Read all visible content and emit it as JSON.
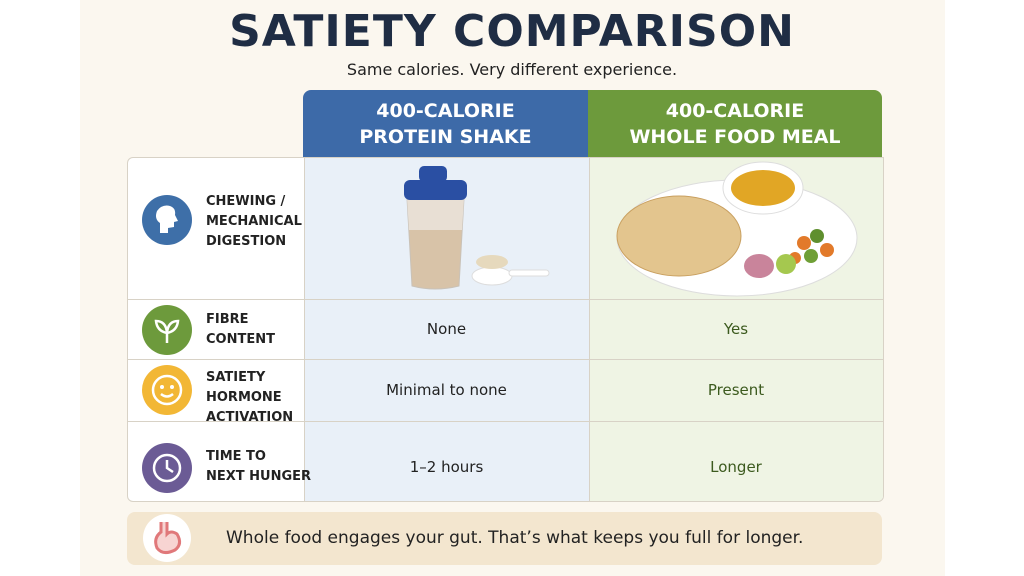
{
  "header": {
    "title": "SATIETY COMPARISON",
    "subtitle": "Same calories. Very different experience."
  },
  "table": {
    "columns": [
      {
        "lines": [
          "400-CALORIE",
          "PROTEIN SHAKE"
        ]
      },
      {
        "lines": [
          "400-CALORIE",
          "WHOLE FOOD MEAL"
        ]
      }
    ],
    "rows": [
      {
        "label": [
          "CHEWING /",
          "MECHANICAL",
          "DIGESTION"
        ]
      },
      {
        "label": [
          "FIBRE",
          "CONTENT"
        ],
        "cells": [
          "None",
          "Yes"
        ]
      },
      {
        "label": [
          "SATIETY",
          "HORMONE",
          "ACTIVATION"
        ],
        "cells": [
          "Minimal to none",
          "Present"
        ]
      },
      {
        "label": [
          "TIME TO",
          "NEXT HUNGER"
        ],
        "cells": [
          "1–2 hours",
          "Longer"
        ]
      }
    ]
  },
  "footer": {
    "text": "Whole food engages your gut. That’s what keeps you full for longer."
  }
}
